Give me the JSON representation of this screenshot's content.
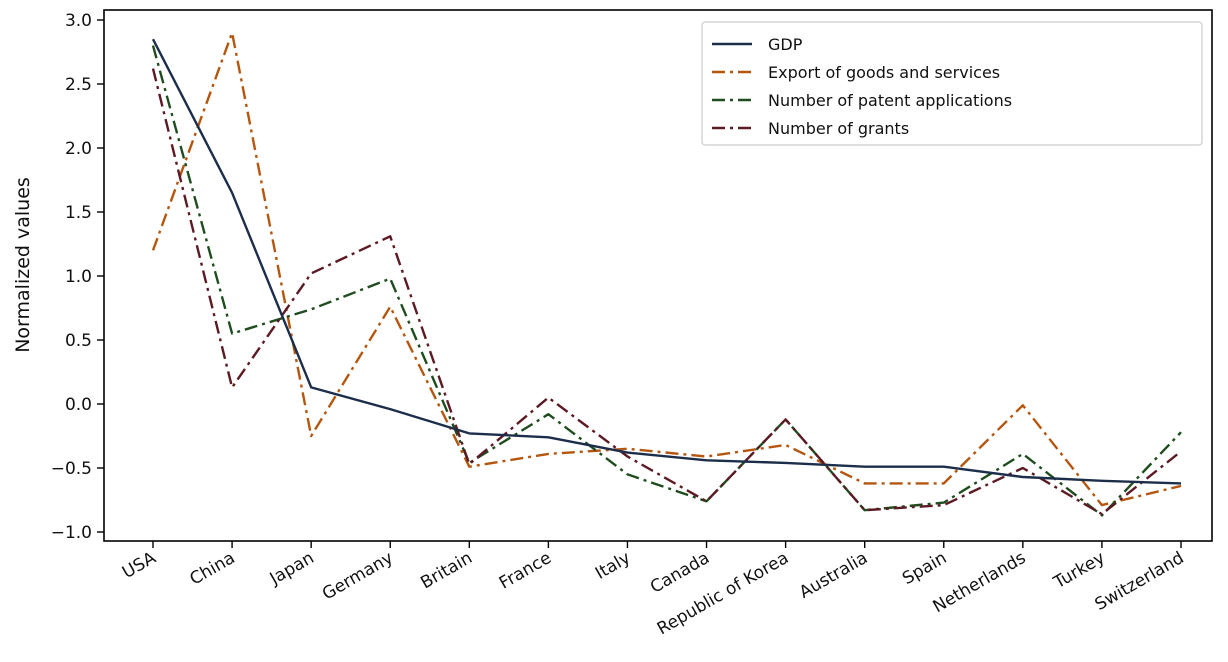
{
  "chart_data": {
    "type": "line",
    "title": "",
    "xlabel": "",
    "ylabel": "Normalized values",
    "ylim": [
      -1.1,
      3.05
    ],
    "yticks": [
      "3.0",
      "2.5",
      "2.0",
      "1.5",
      "1.0",
      "0.5",
      "0.0",
      "−0.5",
      "−1.0"
    ],
    "ytick_values": [
      3.0,
      2.5,
      2.0,
      1.5,
      1.0,
      0.5,
      0.0,
      -0.5,
      -1.0
    ],
    "categories": [
      "USA",
      "China",
      "Japan",
      "Germany",
      "Britain",
      "France",
      "Italy",
      "Canada",
      "Republic of Korea",
      "Australia",
      "Spain",
      "Netherlands",
      "Turkey",
      "Switzerland"
    ],
    "legend_position": "top-right",
    "grid": false,
    "series": [
      {
        "name": "GDP",
        "color": "#1c2e4a",
        "dash": "solid",
        "values": [
          2.85,
          1.65,
          0.13,
          -0.04,
          -0.23,
          -0.26,
          -0.38,
          -0.44,
          -0.46,
          -0.49,
          -0.49,
          -0.57,
          -0.6,
          -0.62
        ]
      },
      {
        "name": "Export of goods and services",
        "color": "#b5560f",
        "dash": "dashdot",
        "values": [
          1.2,
          2.9,
          -0.25,
          0.76,
          -0.49,
          -0.39,
          -0.35,
          -0.41,
          -0.32,
          -0.62,
          -0.62,
          -0.01,
          -0.79,
          -0.64
        ]
      },
      {
        "name": "Number of patent applications",
        "color": "#1f4d1f",
        "dash": "dashdot",
        "values": [
          2.8,
          0.55,
          0.74,
          0.98,
          -0.46,
          -0.08,
          -0.55,
          -0.76,
          -0.12,
          -0.83,
          -0.77,
          -0.39,
          -0.87,
          -0.22
        ]
      },
      {
        "name": "Number of grants",
        "color": "#5c1a24",
        "dash": "dashdot",
        "values": [
          2.62,
          0.13,
          1.02,
          1.31,
          -0.47,
          0.05,
          -0.41,
          -0.76,
          -0.12,
          -0.83,
          -0.79,
          -0.5,
          -0.86,
          -0.37
        ]
      }
    ]
  }
}
